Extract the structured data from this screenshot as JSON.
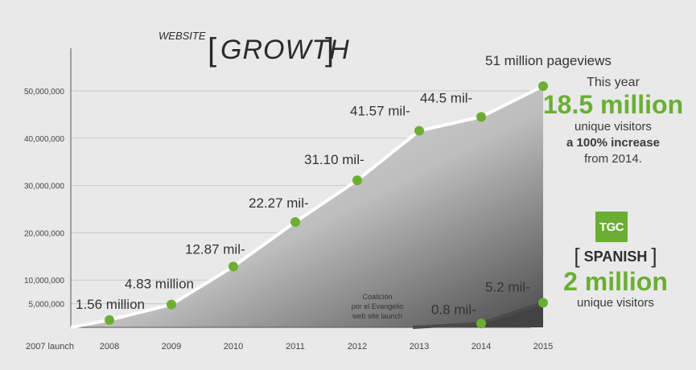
{
  "chart_data": {
    "type": "area",
    "title_small": "WEBSITE",
    "title_big": "GROWTH",
    "x_labels": [
      "2007 launch",
      "2008",
      "2009",
      "2010",
      "2011",
      "2012",
      "2013",
      "2014",
      "2015"
    ],
    "ylim": [
      0,
      60000000
    ],
    "y_ticks": [
      {
        "value": 5000000,
        "label": "5,000,000"
      },
      {
        "value": 10000000,
        "label": "10,000,000"
      },
      {
        "value": 20000000,
        "label": "20,000,000"
      },
      {
        "value": 30000000,
        "label": "30,000,000"
      },
      {
        "value": 40000000,
        "label": "40,000,000"
      },
      {
        "value": 50000000,
        "label": "50,000,000"
      }
    ],
    "grid": true,
    "series": [
      {
        "x": [
          "2007 launch",
          "2008",
          "2009",
          "2010",
          "2011",
          "2012",
          "2013",
          "2014",
          "2015"
        ],
        "values": [
          0,
          1560000,
          4830000,
          12870000,
          22270000,
          31100000,
          41570000,
          44500000,
          51000000
        ],
        "labels": [
          "",
          "1.56 million",
          "4.83 million",
          "12.87 mil-",
          "22.27 mil-",
          "31.10 mil-",
          "41.57 mil-",
          "44.5 mil-",
          "51 million pageviews"
        ]
      },
      {
        "x": [
          "2013",
          "2014",
          "2015"
        ],
        "values": [
          0,
          800000,
          5200000
        ],
        "labels": [
          "",
          "0.8 mil-",
          "5.2 mil-"
        ]
      }
    ],
    "annotations": [
      {
        "lines": [
          "Coalición",
          "por el Evangelio",
          "web site launch"
        ]
      }
    ],
    "colors": {
      "line": "#ffffff",
      "point": "#6bae33",
      "area_dark": "#555555",
      "background": "#e9e9e9"
    }
  },
  "sidebar_main": {
    "line1": "This year",
    "big": "18.5 million",
    "line3": "unique visitors",
    "line4": "a 100% increase",
    "line5": "from 2014."
  },
  "logo": {
    "text": "TGC"
  },
  "sidebar_spanish": {
    "bracket_open": "[",
    "label": "SPANISH",
    "bracket_close": "]",
    "big": "2 million",
    "line3": "unique visitors"
  }
}
